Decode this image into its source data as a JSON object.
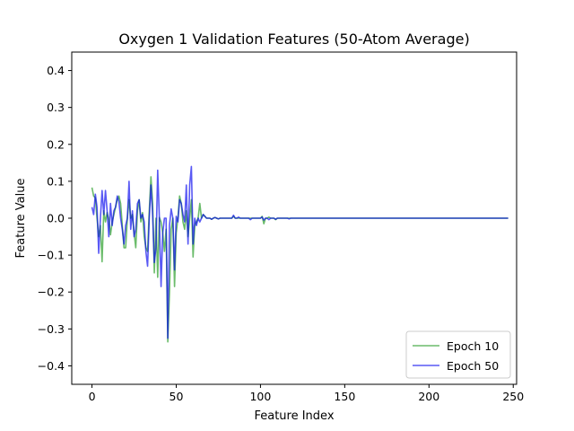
{
  "chart_data": {
    "type": "line",
    "title": "Oxygen 1 Validation Features (50-Atom Average)",
    "xlabel": "Feature Index",
    "ylabel": "Feature Value",
    "xlim": [
      -12,
      252
    ],
    "ylim": [
      -0.45,
      0.45
    ],
    "xticks": [
      0,
      50,
      100,
      150,
      200,
      250
    ],
    "yticks": [
      -0.4,
      -0.3,
      -0.2,
      -0.1,
      0.0,
      0.1,
      0.2,
      0.3,
      0.4
    ],
    "xtick_labels": [
      "0",
      "50",
      "100",
      "150",
      "200",
      "250"
    ],
    "ytick_labels": [
      "−0.4",
      "−0.3",
      "−0.2",
      "−0.1",
      "0.0",
      "0.1",
      "0.2",
      "0.3",
      "0.4"
    ],
    "grid": false,
    "legend_position": "lower-right",
    "series": [
      {
        "name": "Epoch 10",
        "color": "#2ca02c",
        "opacity": 0.7,
        "values": [
          0.083,
          0.06,
          0.055,
          0.0,
          -0.05,
          -0.02,
          -0.118,
          0.02,
          -0.01,
          0.015,
          -0.005,
          -0.045,
          -0.01,
          0.01,
          0.03,
          0.05,
          0.06,
          0.04,
          -0.02,
          -0.08,
          -0.08,
          0.0,
          0.05,
          0.0,
          0.01,
          -0.04,
          -0.08,
          0.02,
          0.05,
          -0.01,
          0.015,
          -0.05,
          -0.08,
          -0.09,
          0.02,
          0.112,
          0.04,
          -0.148,
          0.0,
          -0.16,
          0.002,
          -0.01,
          -0.04,
          -0.09,
          -0.03,
          -0.335,
          -0.2,
          -0.03,
          0.0,
          -0.185,
          -0.04,
          0.0,
          0.06,
          0.04,
          -0.01,
          -0.03,
          0.02,
          -0.05,
          0.0,
          0.05,
          -0.105,
          -0.02,
          -0.01,
          0.0,
          0.04,
          0.0,
          0.01,
          0.005,
          0.0,
          0.0,
          0.0,
          -0.003,
          0.0,
          0.002,
          0.0,
          -0.002,
          0.0,
          0.0,
          0.0,
          0.0,
          0.0,
          0.0,
          0.0,
          0.0,
          0.005,
          0.0,
          0.0,
          0.0,
          0.0,
          0.0,
          0.0,
          0.0,
          0.0,
          0.0,
          0.0,
          0.0,
          0.0,
          0.0,
          0.0,
          0.0,
          0.0,
          0.005,
          -0.015,
          0.0,
          0.0,
          0.003,
          0.0,
          0.0,
          0.0,
          -0.004,
          0.0,
          0.0,
          0.0,
          0.0,
          0.0,
          0.0,
          0.0,
          0.0,
          0.0,
          0.0,
          0.0,
          0.0,
          0.0,
          0.0,
          0.0,
          0.0,
          0.0,
          0.0,
          0.0,
          0.0,
          0.0,
          0.0,
          0.0,
          0.0,
          0.0,
          0.0,
          0.0,
          0.0,
          0.0,
          0.0,
          0.0,
          0.0,
          0.0,
          0.0,
          0.0,
          0.0,
          0.0,
          0.0,
          0.0,
          0.0,
          0.0,
          0.0,
          0.0,
          0.0,
          0.0,
          0.0,
          0.0,
          0.0,
          0.0,
          0.0,
          0.0,
          0.0,
          0.0,
          0.0,
          0.0,
          0.0,
          0.0,
          0.0,
          0.0,
          0.0,
          0.0,
          0.0,
          0.0,
          0.0,
          0.0,
          0.0,
          0.0,
          0.0,
          0.0,
          0.0,
          0.0,
          0.0,
          0.0,
          0.0,
          0.0,
          0.0,
          0.0,
          0.0,
          0.0,
          0.0,
          0.0,
          0.0,
          0.0,
          0.0,
          0.0,
          0.0,
          0.0,
          0.0,
          0.0,
          0.0,
          0.0,
          0.0,
          0.0,
          0.0,
          0.0,
          0.0,
          0.0,
          0.0,
          0.0,
          0.0,
          0.0,
          0.0,
          0.0,
          0.0,
          0.0,
          0.0,
          0.0,
          0.0,
          0.0,
          0.0,
          0.0,
          0.0,
          0.0,
          0.0,
          0.0,
          0.0,
          0.0,
          0.0,
          0.0,
          0.0,
          0.0,
          0.0,
          0.0,
          0.0,
          0.0,
          0.0,
          0.0,
          0.0,
          0.0,
          0.0,
          0.0,
          0.0,
          0.0,
          0.0,
          0.0,
          0.0,
          0.0,
          0.0
        ]
      },
      {
        "name": "Epoch 50",
        "color": "#0000ee",
        "opacity": 0.65,
        "values": [
          0.03,
          0.01,
          0.065,
          0.03,
          -0.095,
          0.0,
          0.075,
          0.01,
          0.075,
          0.02,
          -0.05,
          0.04,
          -0.02,
          0.02,
          0.03,
          0.06,
          0.045,
          0.0,
          -0.03,
          -0.07,
          -0.02,
          0.0,
          0.1,
          -0.03,
          0.02,
          -0.05,
          -0.03,
          0.04,
          0.05,
          0.0,
          0.01,
          -0.01,
          -0.09,
          -0.13,
          0.0,
          0.09,
          0.01,
          -0.12,
          -0.08,
          0.13,
          0.0,
          -0.185,
          -0.04,
          0.0,
          0.0,
          -0.325,
          -0.02,
          0.025,
          0.0,
          -0.14,
          0.005,
          -0.01,
          0.05,
          0.04,
          0.01,
          -0.01,
          0.09,
          -0.07,
          0.09,
          0.14,
          -0.07,
          0.0,
          -0.02,
          0.0,
          -0.01,
          0.0,
          0.01,
          0.005,
          0.0,
          0.0,
          0.0,
          -0.003,
          0.0,
          0.002,
          0.0,
          -0.002,
          0.0,
          0.0,
          0.0,
          0.0,
          0.0,
          0.0,
          0.0,
          0.0,
          0.008,
          0.0,
          0.0,
          0.003,
          0.0,
          0.0,
          0.0,
          0.0,
          0.0,
          0.0,
          -0.004,
          0.0,
          0.0,
          0.0,
          0.0,
          0.0,
          0.0,
          0.003,
          -0.005,
          0.0,
          0.0,
          -0.004,
          0.0,
          0.0,
          0.0,
          -0.003,
          0.0,
          0.0,
          0.0,
          0.0,
          0.0,
          0.0,
          0.0,
          -0.002,
          0.0,
          0.0,
          0.0,
          0.0,
          0.0,
          0.0,
          0.0,
          0.0,
          0.0,
          0.0,
          0.0,
          0.0,
          0.0,
          0.0,
          0.0,
          0.0,
          0.0,
          0.0,
          0.0,
          0.0,
          0.0,
          0.0,
          0.0,
          0.0,
          0.0,
          0.0,
          0.0,
          0.0,
          0.0,
          0.0,
          0.0,
          0.0,
          0.0,
          0.0,
          0.0,
          0.0,
          0.0,
          0.0,
          0.0,
          0.0,
          0.0,
          0.0,
          0.0,
          0.0,
          0.0,
          0.0,
          0.0,
          0.0,
          0.0,
          0.0,
          0.0,
          0.0,
          0.0,
          0.0,
          0.0,
          0.0,
          0.0,
          0.0,
          0.0,
          0.0,
          0.0,
          0.0,
          0.0,
          0.0,
          0.0,
          0.0,
          0.0,
          0.0,
          0.0,
          0.0,
          0.0,
          0.0,
          0.0,
          0.0,
          0.0,
          0.0,
          0.0,
          0.0,
          0.0,
          0.0,
          0.0,
          0.0,
          0.0,
          0.0,
          0.0,
          0.0,
          0.0,
          0.0,
          0.0,
          0.0,
          0.0,
          0.0,
          0.0,
          0.0,
          0.0,
          0.0,
          0.0,
          0.0,
          0.0,
          0.0,
          0.0,
          0.0,
          0.0,
          0.0,
          0.0,
          0.0,
          0.0,
          0.0,
          0.0,
          0.0,
          0.0,
          0.0,
          0.0,
          0.0,
          0.0,
          0.0,
          0.0,
          0.0,
          0.0,
          0.0,
          0.0,
          0.0,
          0.0,
          0.0,
          0.0,
          0.0,
          0.0,
          0.0,
          0.0,
          0.0
        ]
      }
    ]
  }
}
